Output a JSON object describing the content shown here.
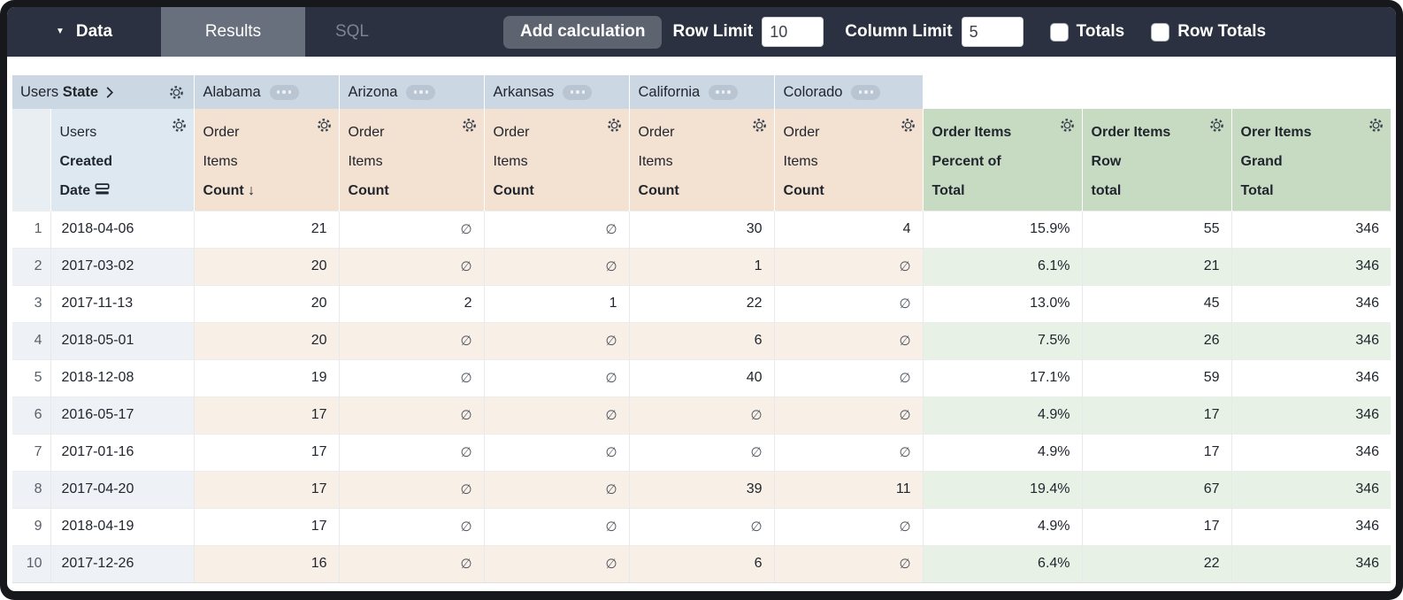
{
  "toolbar": {
    "data_label": "Data",
    "results_tab": "Results",
    "sql_tab": "SQL",
    "add_calculation": "Add calculation",
    "row_limit_label": "Row Limit",
    "row_limit_value": "10",
    "column_limit_label": "Column Limit",
    "column_limit_value": "5",
    "totals_label": "Totals",
    "totals_checked": false,
    "row_totals_label": "Row Totals",
    "row_totals_checked": false
  },
  "table": {
    "pivot_dimension": {
      "view": "Users",
      "field": "State"
    },
    "pivot_values": [
      "Alabama",
      "Arizona",
      "Arkansas",
      "California",
      "Colorado"
    ],
    "row_dimension": {
      "view": "Users",
      "field_lines": [
        "Created",
        "Date"
      ]
    },
    "measure": {
      "view_lines": [
        "Order",
        "Items"
      ],
      "field": "Count",
      "sort_indicator": "↓"
    },
    "calc_columns": [
      {
        "lines": [
          "Order Items",
          "Percent of",
          "Total"
        ]
      },
      {
        "lines": [
          "Order Items",
          "Row",
          "total"
        ]
      },
      {
        "lines": [
          "Orer Items",
          "Grand",
          "Total"
        ]
      }
    ],
    "null_symbol": "∅",
    "rows": [
      {
        "index": "1",
        "date": "2018-04-06",
        "values": [
          "21",
          "∅",
          "∅",
          "30",
          "4"
        ],
        "percent_of_total": "15.9%",
        "row_total": "55",
        "grand_total": "346"
      },
      {
        "index": "2",
        "date": "2017-03-02",
        "values": [
          "20",
          "∅",
          "∅",
          "1",
          "∅"
        ],
        "percent_of_total": "6.1%",
        "row_total": "21",
        "grand_total": "346"
      },
      {
        "index": "3",
        "date": "2017-11-13",
        "values": [
          "20",
          "2",
          "1",
          "22",
          "∅"
        ],
        "percent_of_total": "13.0%",
        "row_total": "45",
        "grand_total": "346"
      },
      {
        "index": "4",
        "date": "2018-05-01",
        "values": [
          "20",
          "∅",
          "∅",
          "6",
          "∅"
        ],
        "percent_of_total": "7.5%",
        "row_total": "26",
        "grand_total": "346"
      },
      {
        "index": "5",
        "date": "2018-12-08",
        "values": [
          "19",
          "∅",
          "∅",
          "40",
          "∅"
        ],
        "percent_of_total": "17.1%",
        "row_total": "59",
        "grand_total": "346"
      },
      {
        "index": "6",
        "date": "2016-05-17",
        "values": [
          "17",
          "∅",
          "∅",
          "∅",
          "∅"
        ],
        "percent_of_total": "4.9%",
        "row_total": "17",
        "grand_total": "346"
      },
      {
        "index": "7",
        "date": "2017-01-16",
        "values": [
          "17",
          "∅",
          "∅",
          "∅",
          "∅"
        ],
        "percent_of_total": "4.9%",
        "row_total": "17",
        "grand_total": "346"
      },
      {
        "index": "8",
        "date": "2017-04-20",
        "values": [
          "17",
          "∅",
          "∅",
          "39",
          "11"
        ],
        "percent_of_total": "19.4%",
        "row_total": "67",
        "grand_total": "346"
      },
      {
        "index": "9",
        "date": "2018-04-19",
        "values": [
          "17",
          "∅",
          "∅",
          "∅",
          "∅"
        ],
        "percent_of_total": "4.9%",
        "row_total": "17",
        "grand_total": "346"
      },
      {
        "index": "10",
        "date": "2017-12-26",
        "values": [
          "16",
          "∅",
          "∅",
          "6",
          "∅"
        ],
        "percent_of_total": "6.4%",
        "row_total": "22",
        "grand_total": "346"
      }
    ]
  },
  "colors": {
    "topbar_bg": "#2b3140",
    "active_tab_bg": "#69707d",
    "button_bg": "#5d6470",
    "pivot_header_bg": "#cbd7e2",
    "dimension_header_bg": "#dee8f1",
    "gutter_header_bg": "#e9eef3",
    "measure_header_bg": "#f3e1d1",
    "calc_header_bg": "#c7dbc3",
    "even_row_dimension_bg": "#eef2f7",
    "even_row_measure_bg": "#f8efe6",
    "even_row_calc_bg": "#e7f1e6"
  }
}
